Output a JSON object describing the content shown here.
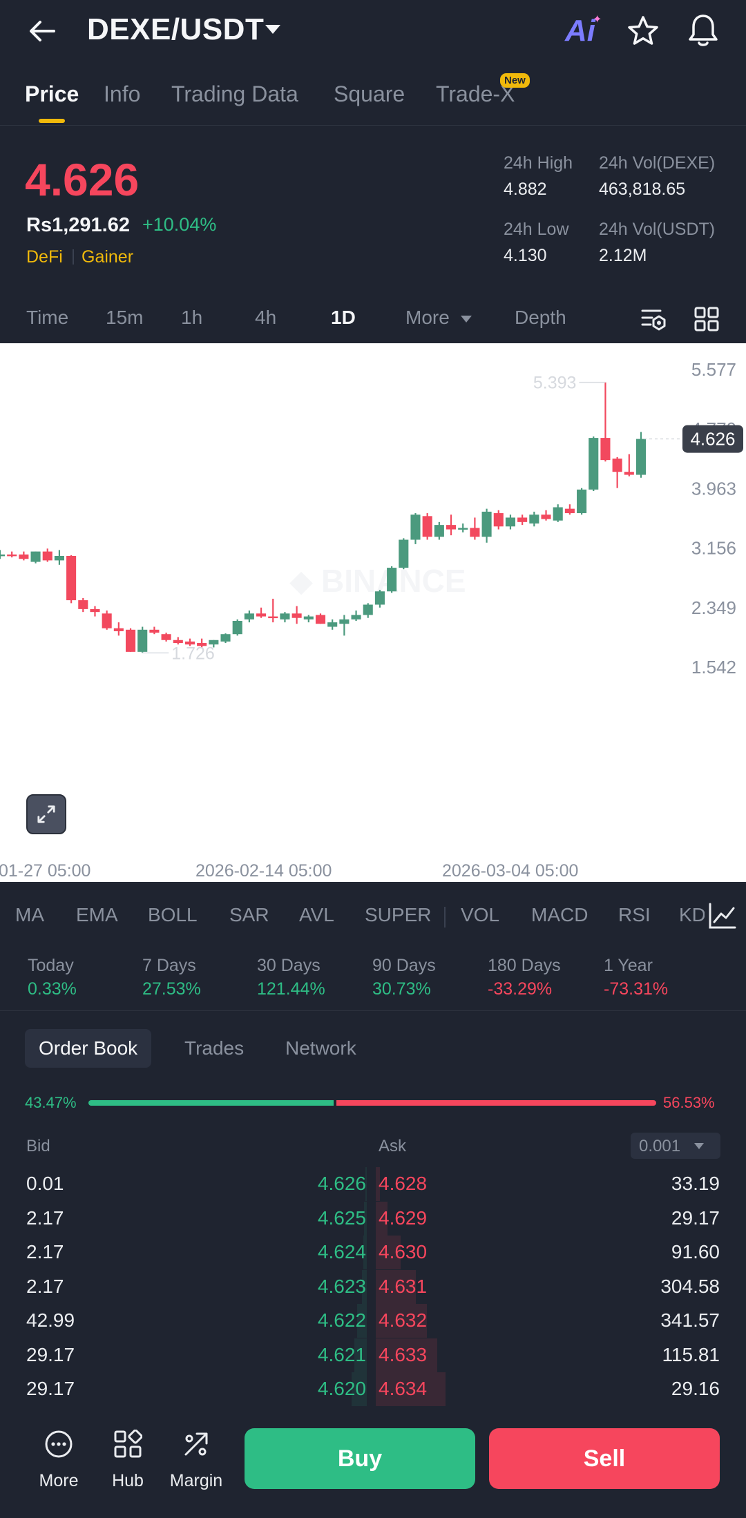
{
  "header": {
    "pair": "DEXE/USDT",
    "ai_label": "Ai",
    "tabs": [
      {
        "label": "Price"
      },
      {
        "label": "Info"
      },
      {
        "label": "Trading Data"
      },
      {
        "label": "Square"
      },
      {
        "label": "Trade-X",
        "badge": "New"
      }
    ]
  },
  "price": {
    "last": "4.626",
    "local": "Rs1,291.62",
    "change_pct": "+10.04%",
    "tags": [
      "DeFi",
      "Gainer"
    ]
  },
  "stats": {
    "high_label": "24h High",
    "high": "4.882",
    "low_label": "24h Low",
    "low": "4.130",
    "vol_base_label": "24h Vol(DEXE)",
    "vol_base": "463,818.65",
    "vol_quote_label": "24h Vol(USDT)",
    "vol_quote": "2.12M"
  },
  "timeframes": [
    "Time",
    "15m",
    "1h",
    "4h",
    "1D",
    "More",
    "Depth"
  ],
  "active_timeframe": "1D",
  "chart_data": {
    "type": "candlestick",
    "y_ticks": [
      "5.577",
      "4.770",
      "3.963",
      "3.156",
      "2.349",
      "1.542"
    ],
    "ylim": [
      1.542,
      5.577
    ],
    "x_ticks": [
      "01-27 05:00",
      "2026-02-14 05:00",
      "2026-03-04 05:00"
    ],
    "current_price_label": "4.626",
    "high_marker": "5.393",
    "low_marker": "1.726",
    "candles": [
      {
        "o": 3.06,
        "h": 3.12,
        "l": 3.0,
        "c": 3.06
      },
      {
        "o": 3.06,
        "h": 3.1,
        "l": 3.02,
        "c": 3.04
      },
      {
        "o": 3.06,
        "h": 3.1,
        "l": 2.98,
        "c": 3.0
      },
      {
        "o": 2.96,
        "h": 3.1,
        "l": 2.94,
        "c": 3.1
      },
      {
        "o": 3.1,
        "h": 3.14,
        "l": 2.96,
        "c": 2.98
      },
      {
        "o": 2.98,
        "h": 3.12,
        "l": 2.92,
        "c": 3.04
      },
      {
        "o": 3.04,
        "h": 3.05,
        "l": 2.4,
        "c": 2.44
      },
      {
        "o": 2.44,
        "h": 2.47,
        "l": 2.28,
        "c": 2.32
      },
      {
        "o": 2.32,
        "h": 2.36,
        "l": 2.22,
        "c": 2.28
      },
      {
        "o": 2.26,
        "h": 2.3,
        "l": 2.04,
        "c": 2.06
      },
      {
        "o": 2.06,
        "h": 2.14,
        "l": 1.96,
        "c": 2.02
      },
      {
        "o": 2.04,
        "h": 2.06,
        "l": 1.74,
        "c": 1.74
      },
      {
        "o": 1.74,
        "h": 2.08,
        "l": 1.726,
        "c": 2.04
      },
      {
        "o": 2.04,
        "h": 2.08,
        "l": 1.98,
        "c": 2.0
      },
      {
        "o": 1.98,
        "h": 2.0,
        "l": 1.88,
        "c": 1.9
      },
      {
        "o": 1.9,
        "h": 1.94,
        "l": 1.84,
        "c": 1.86
      },
      {
        "o": 1.88,
        "h": 1.92,
        "l": 1.82,
        "c": 1.84
      },
      {
        "o": 1.86,
        "h": 1.92,
        "l": 1.8,
        "c": 1.82
      },
      {
        "o": 1.84,
        "h": 1.9,
        "l": 1.8,
        "c": 1.9
      },
      {
        "o": 1.88,
        "h": 1.99,
        "l": 1.86,
        "c": 1.98
      },
      {
        "o": 1.98,
        "h": 2.18,
        "l": 1.96,
        "c": 2.16
      },
      {
        "o": 2.18,
        "h": 2.3,
        "l": 2.14,
        "c": 2.26
      },
      {
        "o": 2.26,
        "h": 2.34,
        "l": 2.2,
        "c": 2.22
      },
      {
        "o": 2.22,
        "h": 2.46,
        "l": 2.14,
        "c": 2.2
      },
      {
        "o": 2.18,
        "h": 2.28,
        "l": 2.14,
        "c": 2.26
      },
      {
        "o": 2.26,
        "h": 2.36,
        "l": 2.12,
        "c": 2.2
      },
      {
        "o": 2.18,
        "h": 2.24,
        "l": 2.14,
        "c": 2.22
      },
      {
        "o": 2.24,
        "h": 2.26,
        "l": 2.12,
        "c": 2.12
      },
      {
        "o": 2.08,
        "h": 2.18,
        "l": 2.04,
        "c": 2.14
      },
      {
        "o": 2.12,
        "h": 2.24,
        "l": 1.96,
        "c": 2.18
      },
      {
        "o": 2.18,
        "h": 2.3,
        "l": 2.16,
        "c": 2.24
      },
      {
        "o": 2.24,
        "h": 2.4,
        "l": 2.2,
        "c": 2.38
      },
      {
        "o": 2.38,
        "h": 2.58,
        "l": 2.34,
        "c": 2.56
      },
      {
        "o": 2.56,
        "h": 2.9,
        "l": 2.54,
        "c": 2.88
      },
      {
        "o": 2.88,
        "h": 3.28,
        "l": 2.86,
        "c": 3.26
      },
      {
        "o": 3.26,
        "h": 3.62,
        "l": 3.2,
        "c": 3.6
      },
      {
        "o": 3.58,
        "h": 3.62,
        "l": 3.26,
        "c": 3.3
      },
      {
        "o": 3.3,
        "h": 3.5,
        "l": 3.26,
        "c": 3.46
      },
      {
        "o": 3.46,
        "h": 3.6,
        "l": 3.32,
        "c": 3.4
      },
      {
        "o": 3.4,
        "h": 3.48,
        "l": 3.36,
        "c": 3.42
      },
      {
        "o": 3.42,
        "h": 3.56,
        "l": 3.26,
        "c": 3.3
      },
      {
        "o": 3.3,
        "h": 3.68,
        "l": 3.22,
        "c": 3.64
      },
      {
        "o": 3.62,
        "h": 3.66,
        "l": 3.4,
        "c": 3.44
      },
      {
        "o": 3.44,
        "h": 3.6,
        "l": 3.4,
        "c": 3.56
      },
      {
        "o": 3.56,
        "h": 3.6,
        "l": 3.46,
        "c": 3.5
      },
      {
        "o": 3.48,
        "h": 3.64,
        "l": 3.44,
        "c": 3.6
      },
      {
        "o": 3.6,
        "h": 3.66,
        "l": 3.52,
        "c": 3.54
      },
      {
        "o": 3.52,
        "h": 3.74,
        "l": 3.5,
        "c": 3.7
      },
      {
        "o": 3.68,
        "h": 3.74,
        "l": 3.6,
        "c": 3.62
      },
      {
        "o": 3.62,
        "h": 3.96,
        "l": 3.6,
        "c": 3.94
      },
      {
        "o": 3.94,
        "h": 4.66,
        "l": 3.92,
        "c": 4.64
      },
      {
        "o": 4.64,
        "h": 5.393,
        "l": 4.32,
        "c": 4.34
      },
      {
        "o": 4.36,
        "h": 4.38,
        "l": 3.96,
        "c": 4.18
      },
      {
        "o": 4.18,
        "h": 4.42,
        "l": 4.12,
        "c": 4.14
      },
      {
        "o": 4.14,
        "h": 4.72,
        "l": 4.1,
        "c": 4.626
      }
    ]
  },
  "indicators": [
    "MA",
    "EMA",
    "BOLL",
    "SAR",
    "AVL",
    "SUPER",
    "VOL",
    "MACD",
    "RSI",
    "KD"
  ],
  "performance": [
    {
      "label": "Today",
      "value": "0.33%",
      "dir": "up"
    },
    {
      "label": "7 Days",
      "value": "27.53%",
      "dir": "up"
    },
    {
      "label": "30 Days",
      "value": "121.44%",
      "dir": "up"
    },
    {
      "label": "90 Days",
      "value": "30.73%",
      "dir": "up"
    },
    {
      "label": "180 Days",
      "value": "-33.29%",
      "dir": "down"
    },
    {
      "label": "1 Year",
      "value": "-73.31%",
      "dir": "down"
    }
  ],
  "orderbook": {
    "tabs": [
      "Order Book",
      "Trades",
      "Network"
    ],
    "bid_ratio": "43.47%",
    "ask_ratio": "56.53%",
    "bid_ratio_value": 0.4347,
    "bid_header": "Bid",
    "ask_header": "Ask",
    "precision": "0.001",
    "rows": [
      {
        "bid_qty": "0.01",
        "bid_px": "4.626",
        "ask_px": "4.628",
        "ask_qty": "33.19"
      },
      {
        "bid_qty": "2.17",
        "bid_px": "4.625",
        "ask_px": "4.629",
        "ask_qty": "29.17"
      },
      {
        "bid_qty": "2.17",
        "bid_px": "4.624",
        "ask_px": "4.630",
        "ask_qty": "91.60"
      },
      {
        "bid_qty": "2.17",
        "bid_px": "4.623",
        "ask_px": "4.631",
        "ask_qty": "304.58"
      },
      {
        "bid_qty": "42.99",
        "bid_px": "4.622",
        "ask_px": "4.632",
        "ask_qty": "341.57"
      },
      {
        "bid_qty": "29.17",
        "bid_px": "4.621",
        "ask_px": "4.633",
        "ask_qty": "115.81"
      },
      {
        "bid_qty": "29.17",
        "bid_px": "4.620",
        "ask_px": "4.634",
        "ask_qty": "29.16"
      }
    ]
  },
  "bottom_nav": {
    "more": "More",
    "hub": "Hub",
    "margin": "Margin",
    "buy": "Buy",
    "sell": "Sell"
  },
  "colors": {
    "up": "#2ebd85",
    "down": "#f6465d",
    "accent": "#f0b90b",
    "background": "#1f2430"
  }
}
